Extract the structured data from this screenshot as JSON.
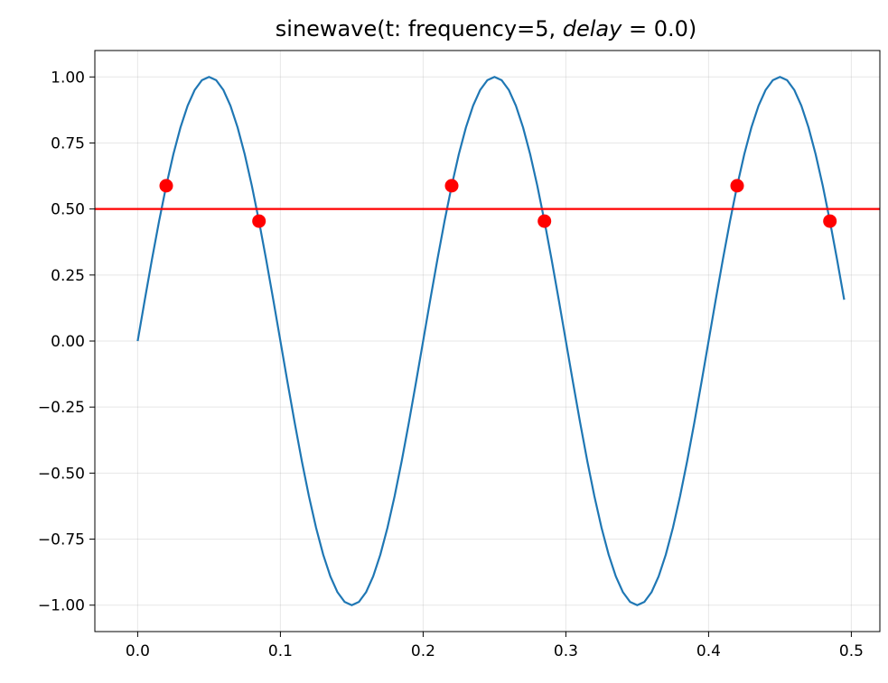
{
  "chart_data": {
    "type": "line",
    "title": {
      "prefix": "sinewave(t: frequency=5,",
      "var": "delay",
      "suffix": "= 0.0)"
    },
    "xlabel": "",
    "ylabel": "",
    "xlim": [
      -0.03,
      0.52
    ],
    "ylim": [
      -1.1,
      1.1
    ],
    "xticks": [
      0.0,
      0.1,
      0.2,
      0.3,
      0.4,
      0.5
    ],
    "xtick_labels": [
      "0.0",
      "0.1",
      "0.2",
      "0.3",
      "0.4",
      "0.5"
    ],
    "yticks": [
      1.0,
      0.75,
      0.5,
      0.25,
      0.0,
      -0.25,
      -0.5,
      -0.75,
      -1.0
    ],
    "ytick_labels": [
      "1.00",
      "0.75",
      "0.50",
      "0.25",
      "0.00",
      "−0.25",
      "−0.50",
      "−0.75",
      "−1.00"
    ],
    "grid": true,
    "series": [
      {
        "kind": "line",
        "color": "#1f77b4",
        "function": "sin(2*pi*5*t)",
        "x_start": 0.0,
        "x_end": 0.495,
        "x_step": 0.005
      }
    ],
    "hline": {
      "y": 0.5,
      "color": "#ff0000"
    },
    "points": {
      "color": "#ff0000",
      "x": [
        0.02,
        0.085,
        0.22,
        0.285,
        0.42,
        0.485
      ],
      "y": [
        0.588,
        0.454,
        0.588,
        0.454,
        0.588,
        0.454
      ]
    }
  }
}
